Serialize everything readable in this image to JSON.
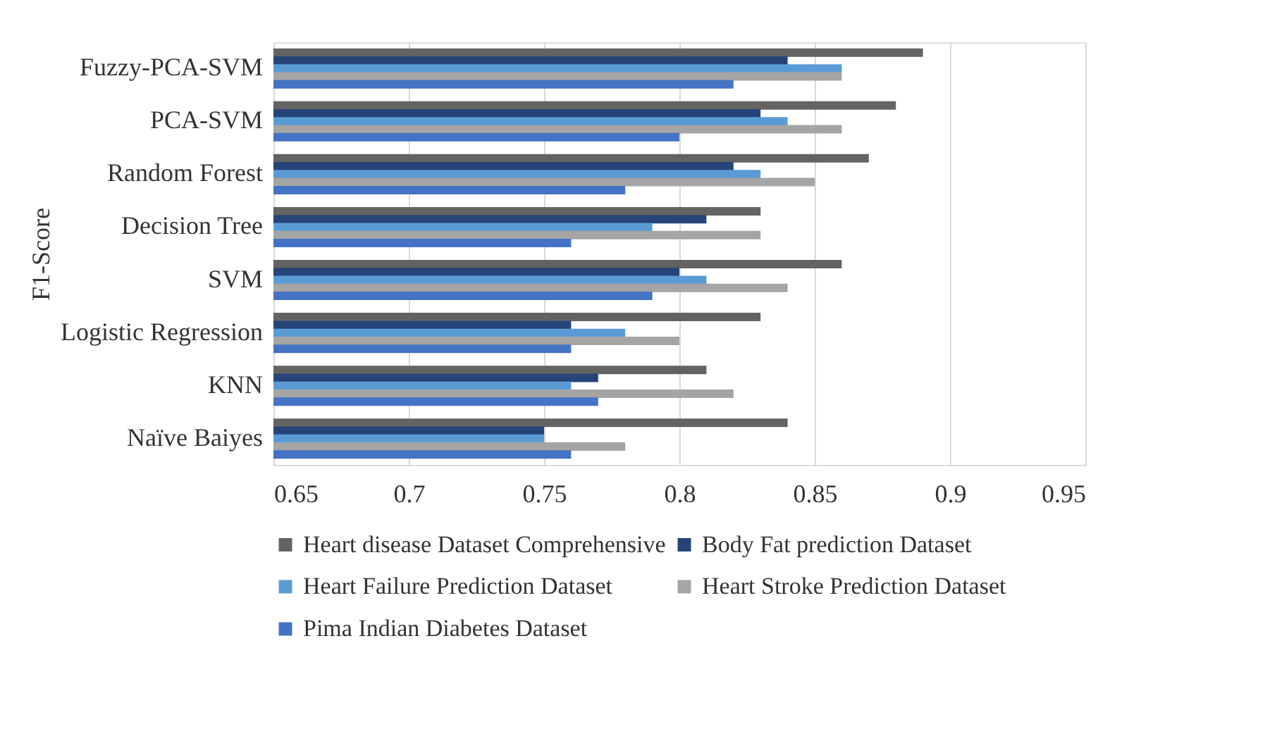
{
  "chart_data": {
    "type": "bar",
    "orientation": "horizontal",
    "ylabel": "F1-Score",
    "categories": [
      "Fuzzy-PCA-SVM",
      "PCA-SVM",
      "Random Forest",
      "Decision Tree",
      "SVM",
      "Logistic Regression",
      "KNN",
      "Naïve Baiyes"
    ],
    "series": [
      {
        "name": "Heart disease Dataset Comprehensive",
        "color": "#636363",
        "values": [
          0.89,
          0.88,
          0.87,
          0.83,
          0.86,
          0.83,
          0.81,
          0.84
        ]
      },
      {
        "name": "Body Fat prediction Dataset",
        "color": "#264478",
        "values": [
          0.84,
          0.83,
          0.82,
          0.81,
          0.8,
          0.76,
          0.77,
          0.75
        ]
      },
      {
        "name": "Heart Failure Prediction Dataset",
        "color": "#5b9bd5",
        "values": [
          0.86,
          0.84,
          0.83,
          0.79,
          0.81,
          0.78,
          0.76,
          0.75
        ]
      },
      {
        "name": "Heart Stroke Prediction Dataset",
        "color": "#a5a5a5",
        "values": [
          0.86,
          0.86,
          0.85,
          0.83,
          0.84,
          0.8,
          0.82,
          0.78
        ]
      },
      {
        "name": "Pima Indian Diabetes Dataset",
        "color": "#4472c4",
        "values": [
          0.82,
          0.8,
          0.78,
          0.76,
          0.79,
          0.76,
          0.77,
          0.76
        ]
      }
    ],
    "xlim": [
      0.65,
      0.95
    ],
    "xticks": [
      0.65,
      0.7,
      0.75,
      0.8,
      0.85,
      0.9,
      0.95
    ],
    "grid": "x",
    "legend": "bottom"
  }
}
